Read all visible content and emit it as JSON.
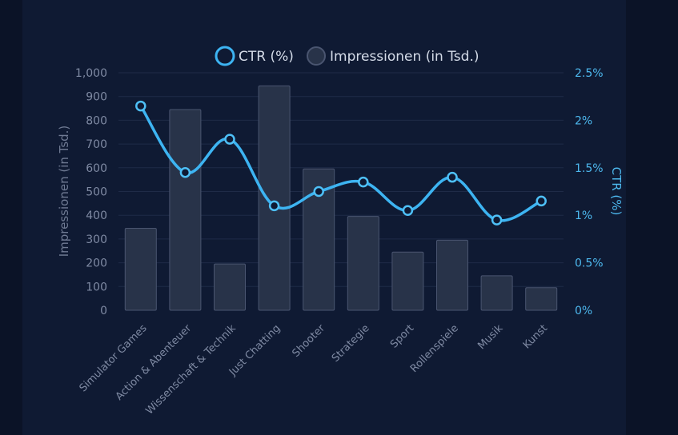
{
  "chart_data": {
    "type": "bar",
    "categories": [
      "Simulator Games",
      "Action & Abenteuer",
      "Wissenschaft & Technik",
      "Just Chatting",
      "Shooter",
      "Strategie",
      "Sport",
      "Rollenspiele",
      "Musik",
      "Kunst"
    ],
    "series": [
      {
        "name": "Impressionen (in Tsd.)",
        "type": "bar",
        "axis": "left",
        "values": [
          345,
          845,
          195,
          945,
          595,
          395,
          245,
          295,
          145,
          95
        ]
      },
      {
        "name": "CTR (%)",
        "type": "line",
        "axis": "right",
        "values": [
          2.15,
          1.45,
          1.8,
          1.1,
          1.25,
          1.35,
          1.05,
          1.4,
          0.95,
          1.15
        ]
      }
    ],
    "ylabel": "Impressionen (in Tsd.)",
    "y2label": "CTR (%)",
    "ylim": [
      0,
      1000
    ],
    "y2lim": [
      0,
      2.5
    ],
    "yticks": [
      "0",
      "100",
      "200",
      "300",
      "400",
      "500",
      "600",
      "700",
      "800",
      "900",
      "1,000"
    ],
    "y2ticks": [
      "0%",
      "0.5%",
      "1%",
      "1.5%",
      "2%",
      "2.5%"
    ],
    "legend": {
      "placement": "top",
      "items": [
        "CTR (%)",
        "Impressionen (in Tsd.)"
      ]
    },
    "grid": true,
    "colors": {
      "background": "#0f1a33",
      "bar_fill": "#283349",
      "bar_stroke": "#4a5570",
      "line": "#3db4f2",
      "right_axis": "#4db8ee",
      "left_axis": "#7f8aa3"
    }
  }
}
